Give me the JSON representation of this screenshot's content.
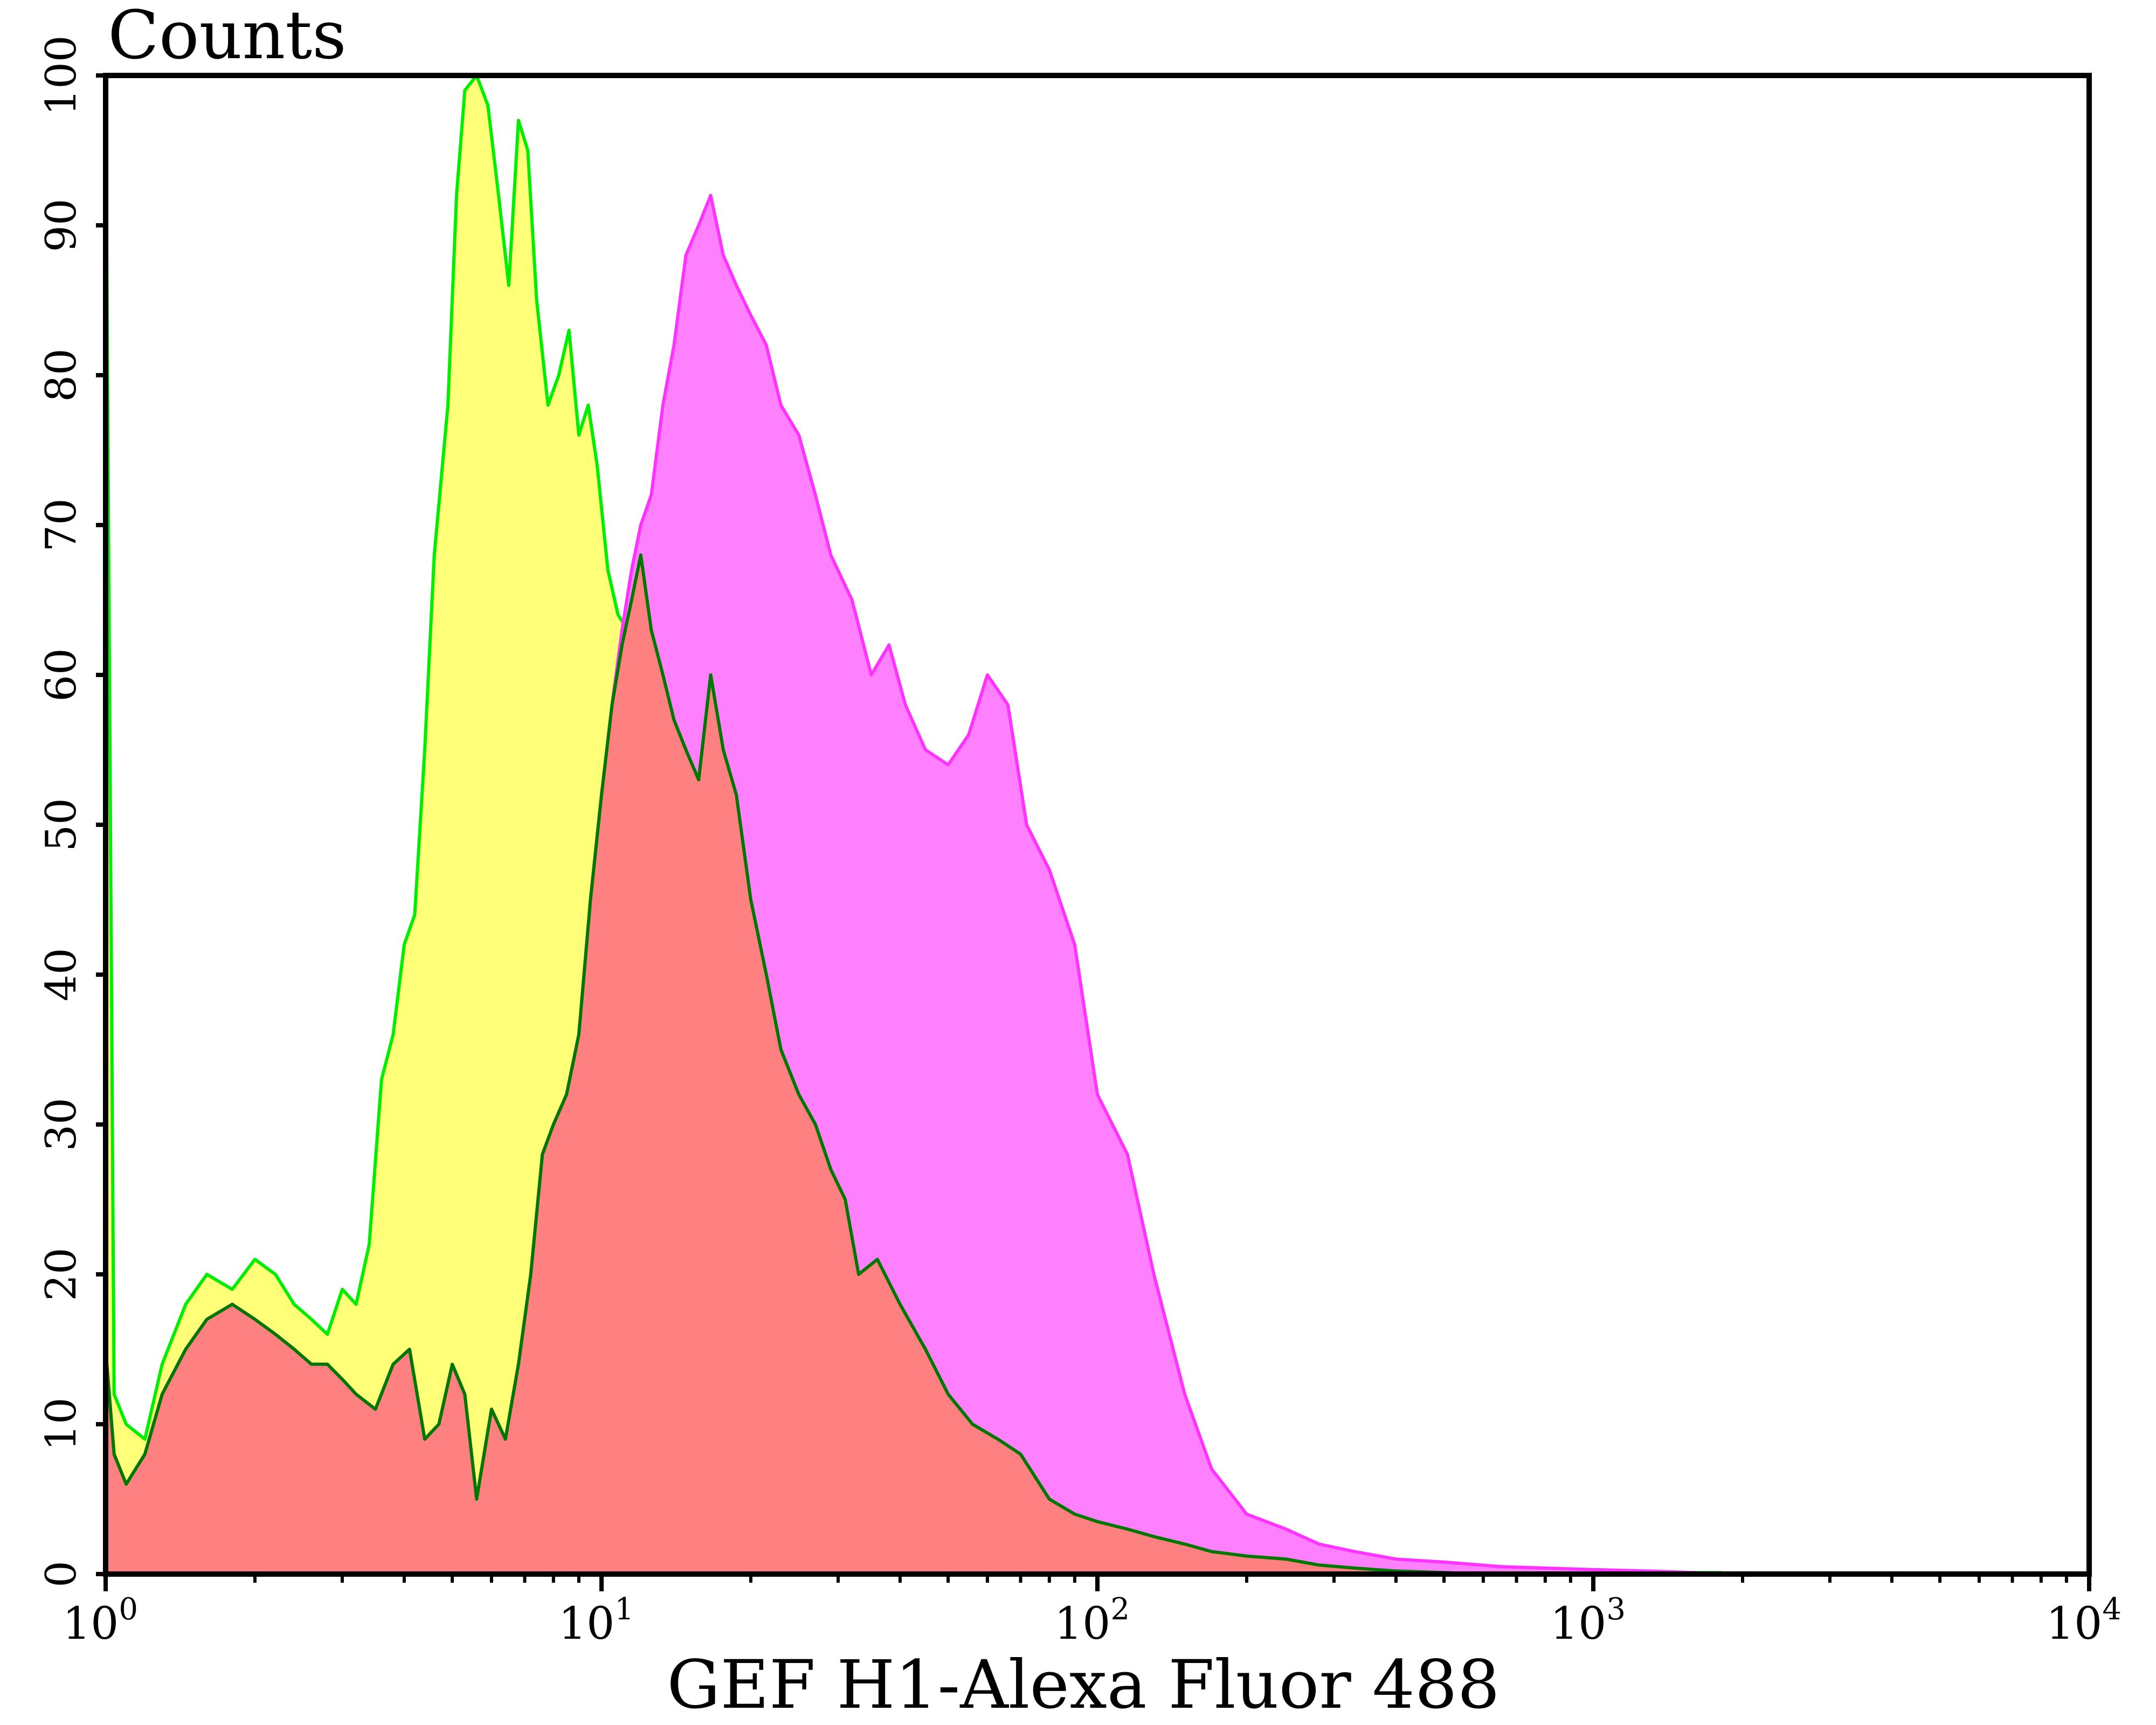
{
  "chart_data": {
    "type": "area",
    "title": "",
    "ylabel": "Counts",
    "xlabel": "GEF H1-Alexa Fluor 488",
    "xscale": "log",
    "xlim": [
      1,
      10000
    ],
    "ylim": [
      0,
      100
    ],
    "yticks": [
      "0",
      "10",
      "20",
      "30",
      "40",
      "50",
      "60",
      "70",
      "80",
      "90",
      "100"
    ],
    "xticks": [
      {
        "base": "10",
        "exp": "0"
      },
      {
        "base": "10",
        "exp": "1"
      },
      {
        "base": "10",
        "exp": "2"
      },
      {
        "base": "10",
        "exp": "3"
      },
      {
        "base": "10",
        "exp": "4"
      }
    ],
    "grid": false,
    "legend": "none",
    "series": [
      {
        "fill": "#ffff78",
        "line": "#00ee00",
        "x": [
          1.0,
          1.04,
          1.1,
          1.2,
          1.3,
          1.45,
          1.6,
          1.8,
          2.0,
          2.2,
          2.4,
          2.6,
          2.8,
          3.0,
          3.2,
          3.4,
          3.6,
          3.8,
          4.0,
          4.2,
          4.4,
          4.6,
          4.9,
          5.1,
          5.3,
          5.6,
          5.9,
          6.2,
          6.5,
          6.8,
          7.1,
          7.4,
          7.8,
          8.2,
          8.6,
          9.0,
          9.4,
          9.8,
          10.3,
          10.8,
          11.3,
          11.8,
          12.4,
          13.0,
          13.7,
          14.5,
          15.5,
          16.5,
          17.5,
          18.5,
          20.0,
          22.0,
          24.0,
          26.0,
          28.0,
          30.0,
          33.0,
          36.0,
          40.0,
          45.0,
          50.0,
          56.0,
          63.0,
          70.0,
          80.0,
          90.0,
          100.0,
          115.0,
          130.0,
          150.0,
          170.0,
          200.0,
          240.0,
          280.0,
          330.0,
          400.0,
          500.0,
          650.0,
          800.0,
          1000.0,
          1300.0,
          1600.0,
          1800.0,
          1900.0
        ],
        "y": [
          100,
          12,
          10,
          9,
          14,
          18,
          20,
          19,
          21,
          20,
          18,
          17,
          16,
          19,
          18,
          22,
          33,
          36,
          42,
          44,
          55,
          68,
          78,
          92,
          99,
          100,
          98,
          92,
          86,
          97,
          95,
          85,
          78,
          80,
          83,
          76,
          78,
          74,
          67,
          64,
          63,
          57,
          55,
          53,
          51,
          48,
          47,
          45,
          44,
          43,
          38,
          33,
          30,
          28,
          24,
          22,
          20,
          18,
          15,
          13,
          12,
          10,
          9,
          7,
          5,
          4,
          3.5,
          3,
          2.5,
          2,
          1.5,
          1,
          0.8,
          0.6,
          0.5,
          0.4,
          0.3,
          0.2,
          0.2,
          0.1,
          0.1,
          0.1,
          0.1,
          0
        ],
        "_note_y_tail": ""
      },
      {
        "fill": "#ff80ff",
        "line": "#ff33ff",
        "x": [
          1.0,
          1.04,
          1.1,
          1.2,
          1.3,
          1.45,
          1.6,
          1.8,
          2.0,
          2.2,
          2.4,
          2.6,
          2.8,
          3.0,
          3.2,
          3.5,
          3.8,
          4.1,
          4.4,
          4.7,
          5.0,
          5.3,
          5.6,
          6.0,
          6.4,
          6.8,
          7.2,
          7.6,
          8.0,
          8.5,
          9.0,
          9.5,
          10.0,
          10.5,
          11.0,
          11.5,
          12.0,
          12.6,
          13.3,
          14.0,
          14.8,
          15.7,
          16.6,
          17.6,
          18.7,
          20.0,
          21.5,
          23.0,
          25.0,
          27.0,
          29.0,
          32.0,
          35.0,
          38.0,
          41.0,
          45.0,
          50.0,
          55.0,
          60.0,
          66.0,
          72.0,
          80.0,
          90.0,
          100.0,
          115.0,
          130.0,
          150.0,
          170.0,
          200.0,
          240.0,
          280.0,
          330.0,
          400.0,
          500.0,
          650.0,
          800.0,
          1000.0,
          1300.0,
          1600.0,
          1700.0
        ],
        "y": [
          15,
          8,
          6,
          8,
          12,
          15,
          17,
          18,
          17,
          16,
          15,
          14,
          14,
          13,
          12,
          11,
          14,
          15,
          9,
          10,
          14,
          12,
          5,
          11,
          9,
          14,
          20,
          28,
          30,
          32,
          36,
          45,
          52,
          58,
          63,
          67,
          70,
          72,
          78,
          82,
          88,
          90,
          92,
          88,
          86,
          84,
          82,
          78,
          76,
          72,
          68,
          65,
          60,
          62,
          58,
          55,
          54,
          56,
          60,
          58,
          50,
          47,
          42,
          32,
          28,
          20,
          12,
          7,
          4,
          3,
          2,
          1.5,
          1,
          0.8,
          0.5,
          0.4,
          0.3,
          0.2,
          0.1,
          0
        ],
        "_note_y_tail": ""
      },
      {
        "fill": "#ff8080",
        "line": "#007700",
        "x": [
          1.0,
          1.04,
          1.1,
          1.2,
          1.3,
          1.45,
          1.6,
          1.8,
          2.0,
          2.2,
          2.4,
          2.6,
          2.8,
          3.0,
          3.2,
          3.5,
          3.8,
          4.1,
          4.4,
          4.7,
          5.0,
          5.3,
          5.6,
          6.0,
          6.4,
          6.8,
          7.2,
          7.6,
          8.0,
          8.5,
          9.0,
          9.5,
          10.0,
          10.5,
          11.0,
          11.5,
          12.0,
          12.6,
          13.3,
          14.0,
          14.8,
          15.7,
          16.6,
          17.6,
          18.7,
          20.0,
          21.5,
          23.0,
          25.0,
          27.0,
          29.0,
          31.0,
          33.0,
          36.0,
          40.0,
          45.0,
          50.0,
          56.0,
          63.0,
          70.0,
          80.0,
          90.0,
          100.0,
          115.0,
          130.0,
          150.0,
          170.0,
          200.0,
          240.0,
          280.0,
          330.0,
          400.0,
          500.0,
          600.0
        ],
        "y": [
          15,
          8,
          6,
          8,
          12,
          15,
          17,
          18,
          17,
          16,
          15,
          14,
          14,
          13,
          12,
          11,
          14,
          15,
          9,
          10,
          14,
          12,
          5,
          11,
          9,
          14,
          20,
          28,
          30,
          32,
          36,
          45,
          52,
          58,
          62,
          65,
          68,
          63,
          60,
          57,
          55,
          53,
          60,
          55,
          52,
          45,
          40,
          35,
          32,
          30,
          27,
          25,
          20,
          21,
          18,
          15,
          12,
          10,
          9,
          8,
          5,
          4,
          3.5,
          3,
          2.5,
          2,
          1.5,
          1.2,
          1,
          0.6,
          0.4,
          0.2,
          0.1,
          0
        ],
        "_note_y_tail": ""
      }
    ]
  }
}
